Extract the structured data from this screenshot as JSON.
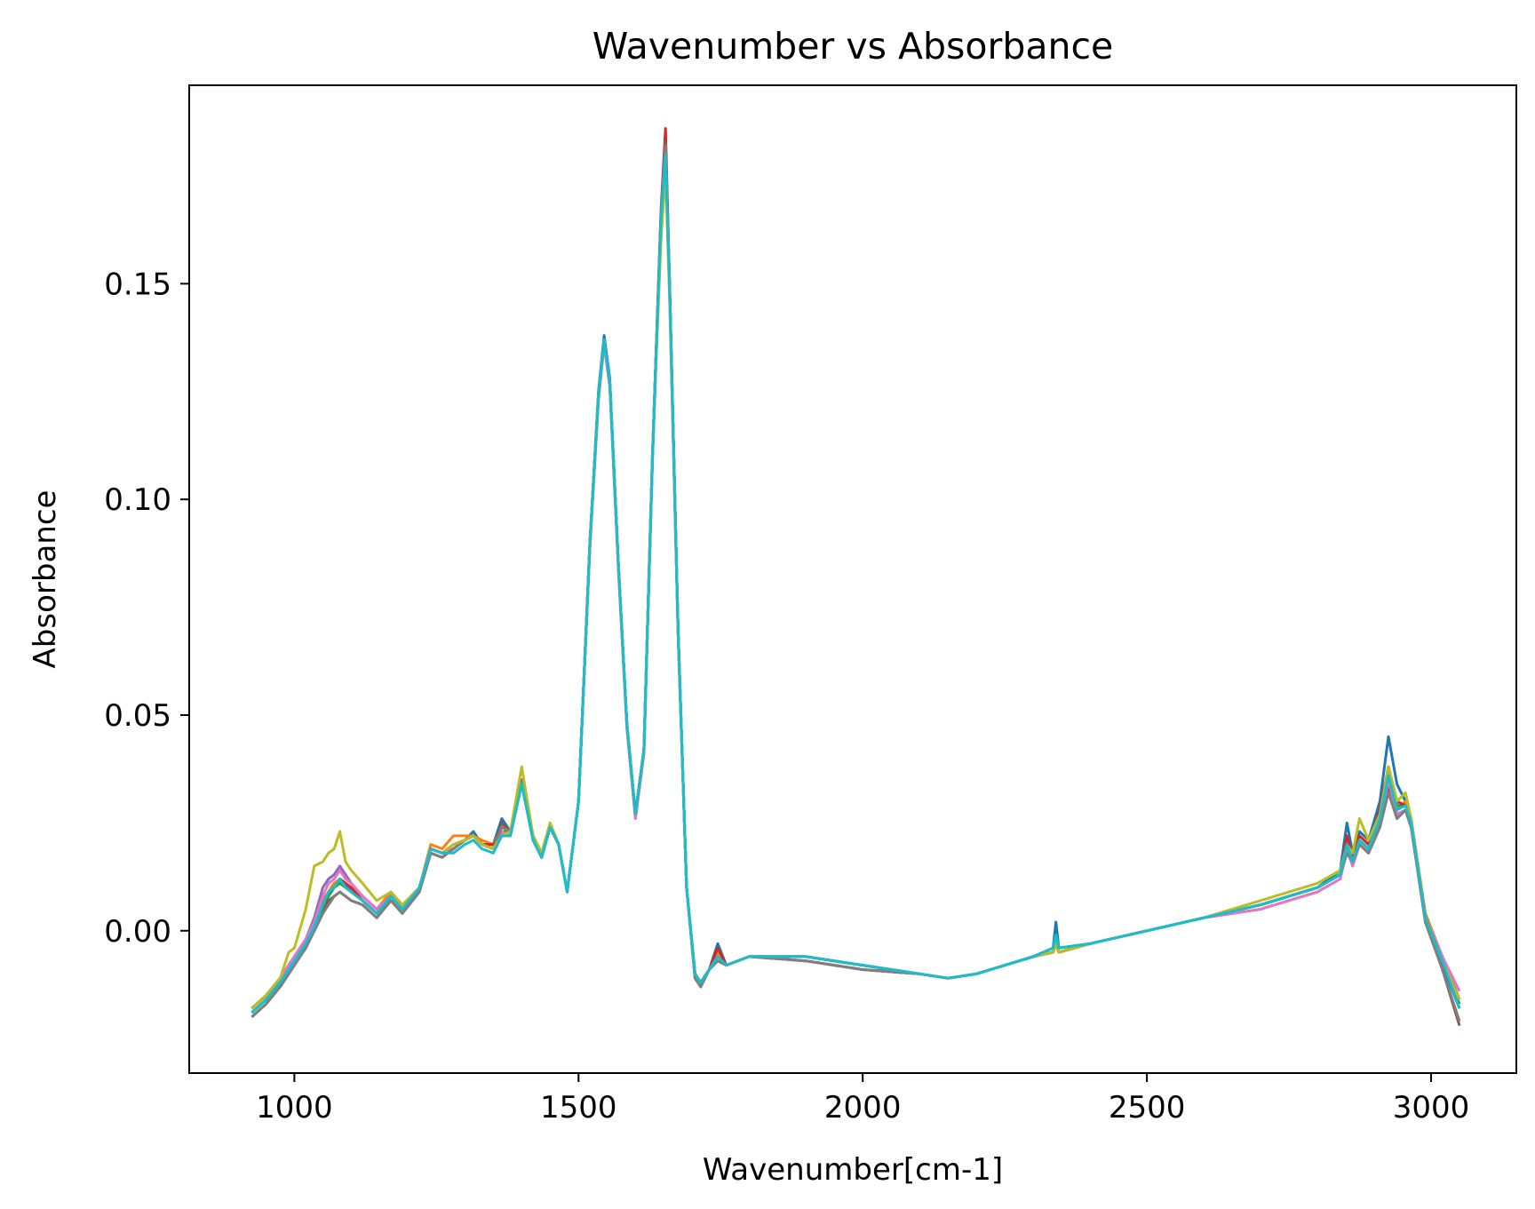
{
  "chart_data": {
    "type": "line",
    "title": "Wavenumber vs Absorbance",
    "xlabel": "Wavenumber[cm-1]",
    "ylabel": "Absorbance",
    "xlim": [
      815,
      3150
    ],
    "ylim": [
      -0.033,
      0.196
    ],
    "xticks": [
      1000,
      1500,
      2000,
      2500,
      3000
    ],
    "xtick_labels": [
      "1000",
      "1500",
      "2000",
      "2500",
      "3000"
    ],
    "yticks": [
      0.0,
      0.05,
      0.1,
      0.15
    ],
    "ytick_labels": [
      "0.00",
      "0.05",
      "0.10",
      "0.15"
    ],
    "grid": false,
    "legend": "none",
    "x": [
      925,
      950,
      975,
      990,
      1000,
      1020,
      1035,
      1050,
      1060,
      1070,
      1080,
      1090,
      1100,
      1120,
      1145,
      1170,
      1190,
      1220,
      1240,
      1260,
      1280,
      1300,
      1315,
      1330,
      1350,
      1365,
      1380,
      1400,
      1420,
      1435,
      1450,
      1465,
      1480,
      1500,
      1520,
      1535,
      1545,
      1555,
      1570,
      1585,
      1600,
      1615,
      1630,
      1645,
      1653,
      1660,
      1675,
      1690,
      1705,
      1715,
      1730,
      1745,
      1760,
      1800,
      1900,
      2000,
      2100,
      2150,
      2200,
      2300,
      2335,
      2340,
      2345,
      2400,
      2500,
      2600,
      2700,
      2800,
      2840,
      2852,
      2862,
      2874,
      2890,
      2910,
      2925,
      2940,
      2955,
      2965,
      2990,
      3020,
      3050
    ],
    "series": [
      {
        "color": "#1f77b4",
        "values": [
          -0.019,
          -0.016,
          -0.012,
          -0.009,
          -0.007,
          -0.003,
          0.001,
          0.006,
          0.009,
          0.01,
          0.012,
          0.011,
          0.009,
          0.007,
          0.004,
          0.008,
          0.005,
          0.01,
          0.019,
          0.018,
          0.019,
          0.021,
          0.023,
          0.02,
          0.02,
          0.026,
          0.023,
          0.035,
          0.022,
          0.018,
          0.024,
          0.02,
          0.009,
          0.03,
          0.09,
          0.125,
          0.138,
          0.128,
          0.085,
          0.048,
          0.027,
          0.042,
          0.11,
          0.165,
          0.18,
          0.15,
          0.07,
          0.01,
          -0.01,
          -0.012,
          -0.009,
          -0.003,
          -0.008,
          -0.006,
          -0.006,
          -0.008,
          -0.01,
          -0.011,
          -0.01,
          -0.006,
          -0.004,
          0.002,
          -0.004,
          -0.003,
          0.0,
          0.003,
          0.006,
          0.01,
          0.014,
          0.025,
          0.018,
          0.023,
          0.021,
          0.03,
          0.045,
          0.034,
          0.03,
          0.025,
          0.003,
          -0.008,
          -0.018
        ]
      },
      {
        "color": "#ff7f0e",
        "values": [
          -0.018,
          -0.015,
          -0.011,
          -0.008,
          -0.006,
          -0.002,
          0.002,
          0.007,
          0.009,
          0.011,
          0.012,
          0.011,
          0.01,
          0.008,
          0.005,
          0.009,
          0.006,
          0.01,
          0.02,
          0.019,
          0.022,
          0.022,
          0.022,
          0.021,
          0.02,
          0.024,
          0.023,
          0.035,
          0.022,
          0.018,
          0.025,
          0.02,
          0.009,
          0.03,
          0.09,
          0.124,
          0.137,
          0.127,
          0.085,
          0.048,
          0.027,
          0.042,
          0.11,
          0.166,
          0.181,
          0.15,
          0.07,
          0.01,
          -0.01,
          -0.012,
          -0.009,
          -0.005,
          -0.008,
          -0.006,
          -0.006,
          -0.008,
          -0.01,
          -0.011,
          -0.01,
          -0.006,
          -0.005,
          -0.002,
          -0.005,
          -0.003,
          0.0,
          0.003,
          0.006,
          0.01,
          0.013,
          0.019,
          0.016,
          0.021,
          0.019,
          0.026,
          0.034,
          0.028,
          0.03,
          0.026,
          0.004,
          -0.006,
          -0.016
        ]
      },
      {
        "color": "#2ca02c",
        "values": [
          -0.019,
          -0.016,
          -0.012,
          -0.009,
          -0.007,
          -0.003,
          0.001,
          0.005,
          0.008,
          0.01,
          0.011,
          0.01,
          0.009,
          0.007,
          0.004,
          0.008,
          0.005,
          0.01,
          0.019,
          0.018,
          0.019,
          0.021,
          0.022,
          0.02,
          0.02,
          0.023,
          0.023,
          0.035,
          0.022,
          0.018,
          0.024,
          0.02,
          0.009,
          0.03,
          0.09,
          0.124,
          0.137,
          0.127,
          0.085,
          0.048,
          0.027,
          0.042,
          0.11,
          0.165,
          0.18,
          0.15,
          0.07,
          0.01,
          -0.01,
          -0.012,
          -0.009,
          -0.006,
          -0.008,
          -0.006,
          -0.006,
          -0.008,
          -0.01,
          -0.011,
          -0.01,
          -0.006,
          -0.004,
          -0.001,
          -0.004,
          -0.003,
          0.0,
          0.003,
          0.006,
          0.01,
          0.013,
          0.02,
          0.016,
          0.021,
          0.019,
          0.027,
          0.038,
          0.029,
          0.029,
          0.025,
          0.003,
          -0.007,
          -0.017
        ]
      },
      {
        "color": "#d62728",
        "values": [
          -0.018,
          -0.015,
          -0.011,
          -0.008,
          -0.006,
          -0.002,
          0.002,
          0.006,
          0.009,
          0.01,
          0.012,
          0.011,
          0.01,
          0.007,
          0.004,
          0.008,
          0.005,
          0.01,
          0.019,
          0.018,
          0.02,
          0.021,
          0.022,
          0.02,
          0.02,
          0.022,
          0.022,
          0.035,
          0.021,
          0.017,
          0.024,
          0.02,
          0.009,
          0.03,
          0.09,
          0.124,
          0.137,
          0.127,
          0.085,
          0.048,
          0.027,
          0.042,
          0.11,
          0.167,
          0.186,
          0.151,
          0.07,
          0.01,
          -0.01,
          -0.012,
          -0.009,
          -0.004,
          -0.008,
          -0.006,
          -0.006,
          -0.008,
          -0.01,
          -0.011,
          -0.01,
          -0.006,
          -0.005,
          -0.003,
          -0.005,
          -0.003,
          0.0,
          0.003,
          0.006,
          0.01,
          0.013,
          0.022,
          0.017,
          0.022,
          0.02,
          0.028,
          0.038,
          0.03,
          0.029,
          0.025,
          0.003,
          -0.007,
          -0.018
        ]
      },
      {
        "color": "#9467bd",
        "values": [
          -0.018,
          -0.015,
          -0.011,
          -0.008,
          -0.006,
          -0.002,
          0.003,
          0.01,
          0.012,
          0.013,
          0.015,
          0.013,
          0.011,
          0.008,
          0.005,
          0.008,
          0.005,
          0.01,
          0.019,
          0.018,
          0.019,
          0.021,
          0.022,
          0.02,
          0.019,
          0.023,
          0.022,
          0.034,
          0.021,
          0.017,
          0.024,
          0.02,
          0.009,
          0.03,
          0.089,
          0.123,
          0.136,
          0.126,
          0.084,
          0.047,
          0.026,
          0.041,
          0.109,
          0.164,
          0.178,
          0.148,
          0.069,
          0.01,
          -0.01,
          -0.012,
          -0.009,
          -0.006,
          -0.008,
          -0.006,
          -0.007,
          -0.009,
          -0.01,
          -0.011,
          -0.01,
          -0.006,
          -0.005,
          -0.003,
          -0.005,
          -0.003,
          0.0,
          0.003,
          0.005,
          0.009,
          0.012,
          0.019,
          0.015,
          0.02,
          0.018,
          0.025,
          0.035,
          0.027,
          0.028,
          0.024,
          0.003,
          -0.006,
          -0.016
        ]
      },
      {
        "color": "#8c564b",
        "values": [
          -0.02,
          -0.017,
          -0.013,
          -0.01,
          -0.008,
          -0.004,
          0.0,
          0.004,
          0.007,
          0.008,
          0.009,
          0.008,
          0.007,
          0.006,
          0.003,
          0.007,
          0.004,
          0.009,
          0.018,
          0.017,
          0.019,
          0.021,
          0.022,
          0.02,
          0.019,
          0.025,
          0.023,
          0.035,
          0.022,
          0.017,
          0.024,
          0.02,
          0.009,
          0.03,
          0.09,
          0.124,
          0.137,
          0.127,
          0.085,
          0.048,
          0.027,
          0.042,
          0.11,
          0.166,
          0.183,
          0.15,
          0.07,
          0.01,
          -0.011,
          -0.013,
          -0.009,
          -0.007,
          -0.008,
          -0.006,
          -0.007,
          -0.009,
          -0.01,
          -0.011,
          -0.01,
          -0.006,
          -0.005,
          -0.003,
          -0.005,
          -0.003,
          0.0,
          0.003,
          0.006,
          0.01,
          0.013,
          0.018,
          0.016,
          0.02,
          0.018,
          0.024,
          0.033,
          0.026,
          0.028,
          0.024,
          0.002,
          -0.009,
          -0.022
        ]
      },
      {
        "color": "#e377c2",
        "values": [
          -0.018,
          -0.015,
          -0.011,
          -0.008,
          -0.006,
          -0.002,
          0.002,
          0.008,
          0.011,
          0.012,
          0.014,
          0.012,
          0.011,
          0.008,
          0.005,
          0.008,
          0.005,
          0.01,
          0.019,
          0.018,
          0.019,
          0.021,
          0.022,
          0.02,
          0.019,
          0.023,
          0.022,
          0.034,
          0.021,
          0.017,
          0.024,
          0.02,
          0.009,
          0.03,
          0.089,
          0.123,
          0.136,
          0.126,
          0.084,
          0.047,
          0.026,
          0.041,
          0.109,
          0.164,
          0.178,
          0.148,
          0.069,
          0.01,
          -0.01,
          -0.012,
          -0.009,
          -0.006,
          -0.008,
          -0.006,
          -0.007,
          -0.009,
          -0.01,
          -0.011,
          -0.01,
          -0.006,
          -0.005,
          -0.003,
          -0.005,
          -0.003,
          0.0,
          0.003,
          0.005,
          0.009,
          0.012,
          0.019,
          0.015,
          0.02,
          0.018,
          0.025,
          0.035,
          0.027,
          0.028,
          0.024,
          0.003,
          -0.006,
          -0.014
        ]
      },
      {
        "color": "#7f7f7f",
        "values": [
          -0.02,
          -0.017,
          -0.013,
          -0.01,
          -0.008,
          -0.004,
          0.0,
          0.004,
          0.006,
          0.008,
          0.009,
          0.008,
          0.007,
          0.006,
          0.003,
          0.007,
          0.004,
          0.009,
          0.018,
          0.017,
          0.019,
          0.021,
          0.022,
          0.02,
          0.019,
          0.024,
          0.023,
          0.035,
          0.022,
          0.017,
          0.024,
          0.02,
          0.009,
          0.03,
          0.09,
          0.124,
          0.137,
          0.127,
          0.085,
          0.048,
          0.027,
          0.042,
          0.11,
          0.166,
          0.182,
          0.15,
          0.07,
          0.01,
          -0.011,
          -0.013,
          -0.009,
          -0.007,
          -0.008,
          -0.006,
          -0.007,
          -0.009,
          -0.01,
          -0.011,
          -0.01,
          -0.006,
          -0.005,
          -0.003,
          -0.005,
          -0.003,
          0.0,
          0.003,
          0.006,
          0.01,
          0.013,
          0.018,
          0.016,
          0.02,
          0.018,
          0.024,
          0.032,
          0.026,
          0.028,
          0.024,
          0.002,
          -0.009,
          -0.021
        ]
      },
      {
        "color": "#bcbd22",
        "values": [
          -0.018,
          -0.015,
          -0.011,
          -0.005,
          -0.004,
          0.005,
          0.015,
          0.016,
          0.018,
          0.019,
          0.023,
          0.016,
          0.014,
          0.011,
          0.007,
          0.009,
          0.006,
          0.01,
          0.019,
          0.018,
          0.02,
          0.021,
          0.022,
          0.02,
          0.019,
          0.022,
          0.023,
          0.038,
          0.022,
          0.018,
          0.025,
          0.02,
          0.009,
          0.03,
          0.09,
          0.124,
          0.137,
          0.127,
          0.085,
          0.048,
          0.027,
          0.042,
          0.111,
          0.16,
          0.176,
          0.147,
          0.07,
          0.01,
          -0.01,
          -0.012,
          -0.009,
          -0.006,
          -0.008,
          -0.006,
          -0.006,
          -0.008,
          -0.01,
          -0.011,
          -0.01,
          -0.006,
          -0.005,
          -0.003,
          -0.005,
          -0.003,
          0.0,
          0.003,
          0.007,
          0.011,
          0.014,
          0.02,
          0.018,
          0.026,
          0.021,
          0.027,
          0.038,
          0.03,
          0.032,
          0.026,
          0.003,
          -0.007,
          -0.016
        ]
      },
      {
        "color": "#17becf",
        "values": [
          -0.019,
          -0.016,
          -0.012,
          -0.009,
          -0.007,
          -0.003,
          0.001,
          0.006,
          0.009,
          0.01,
          0.012,
          0.01,
          0.009,
          0.007,
          0.004,
          0.008,
          0.005,
          0.01,
          0.019,
          0.018,
          0.018,
          0.02,
          0.021,
          0.019,
          0.018,
          0.022,
          0.022,
          0.034,
          0.021,
          0.017,
          0.024,
          0.02,
          0.009,
          0.03,
          0.09,
          0.124,
          0.137,
          0.127,
          0.085,
          0.048,
          0.027,
          0.042,
          0.11,
          0.165,
          0.18,
          0.15,
          0.07,
          0.01,
          -0.01,
          -0.012,
          -0.009,
          -0.006,
          -0.008,
          -0.006,
          -0.006,
          -0.008,
          -0.01,
          -0.011,
          -0.01,
          -0.006,
          -0.004,
          -0.001,
          -0.004,
          -0.003,
          0.0,
          0.003,
          0.006,
          0.01,
          0.013,
          0.02,
          0.016,
          0.021,
          0.019,
          0.026,
          0.036,
          0.028,
          0.029,
          0.025,
          0.003,
          -0.007,
          -0.018
        ]
      }
    ]
  }
}
